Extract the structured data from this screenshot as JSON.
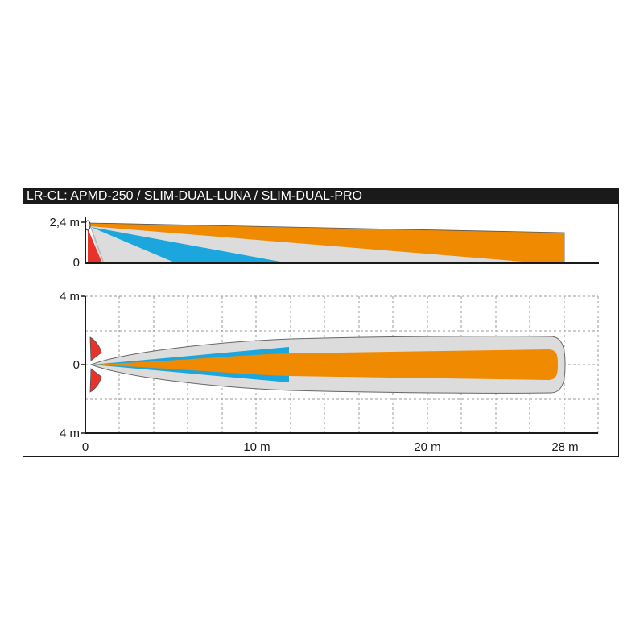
{
  "title": "LR-CL: APMD-250 / SLIM-DUAL-LUNA / SLIM-DUAL-PRO",
  "side_view": {
    "y_labels": {
      "top": "2,4 m",
      "bottom": "0"
    }
  },
  "top_view": {
    "y_labels": {
      "top": "4 m",
      "middle": "0",
      "bottom": "4 m"
    },
    "x_labels": {
      "start": "0",
      "l10": "10 m",
      "l20": "20 m",
      "l28": "28 m"
    }
  },
  "colors": {
    "title_bg": "#1a1a1a",
    "microwave_zone": "#f08a00",
    "pir_zone": "#1ba6de",
    "outer_zone": "#dcdcdc",
    "creep_zone": "#e8332a",
    "axis": "#1a1a1a",
    "grid": "#9a9a9a"
  }
}
